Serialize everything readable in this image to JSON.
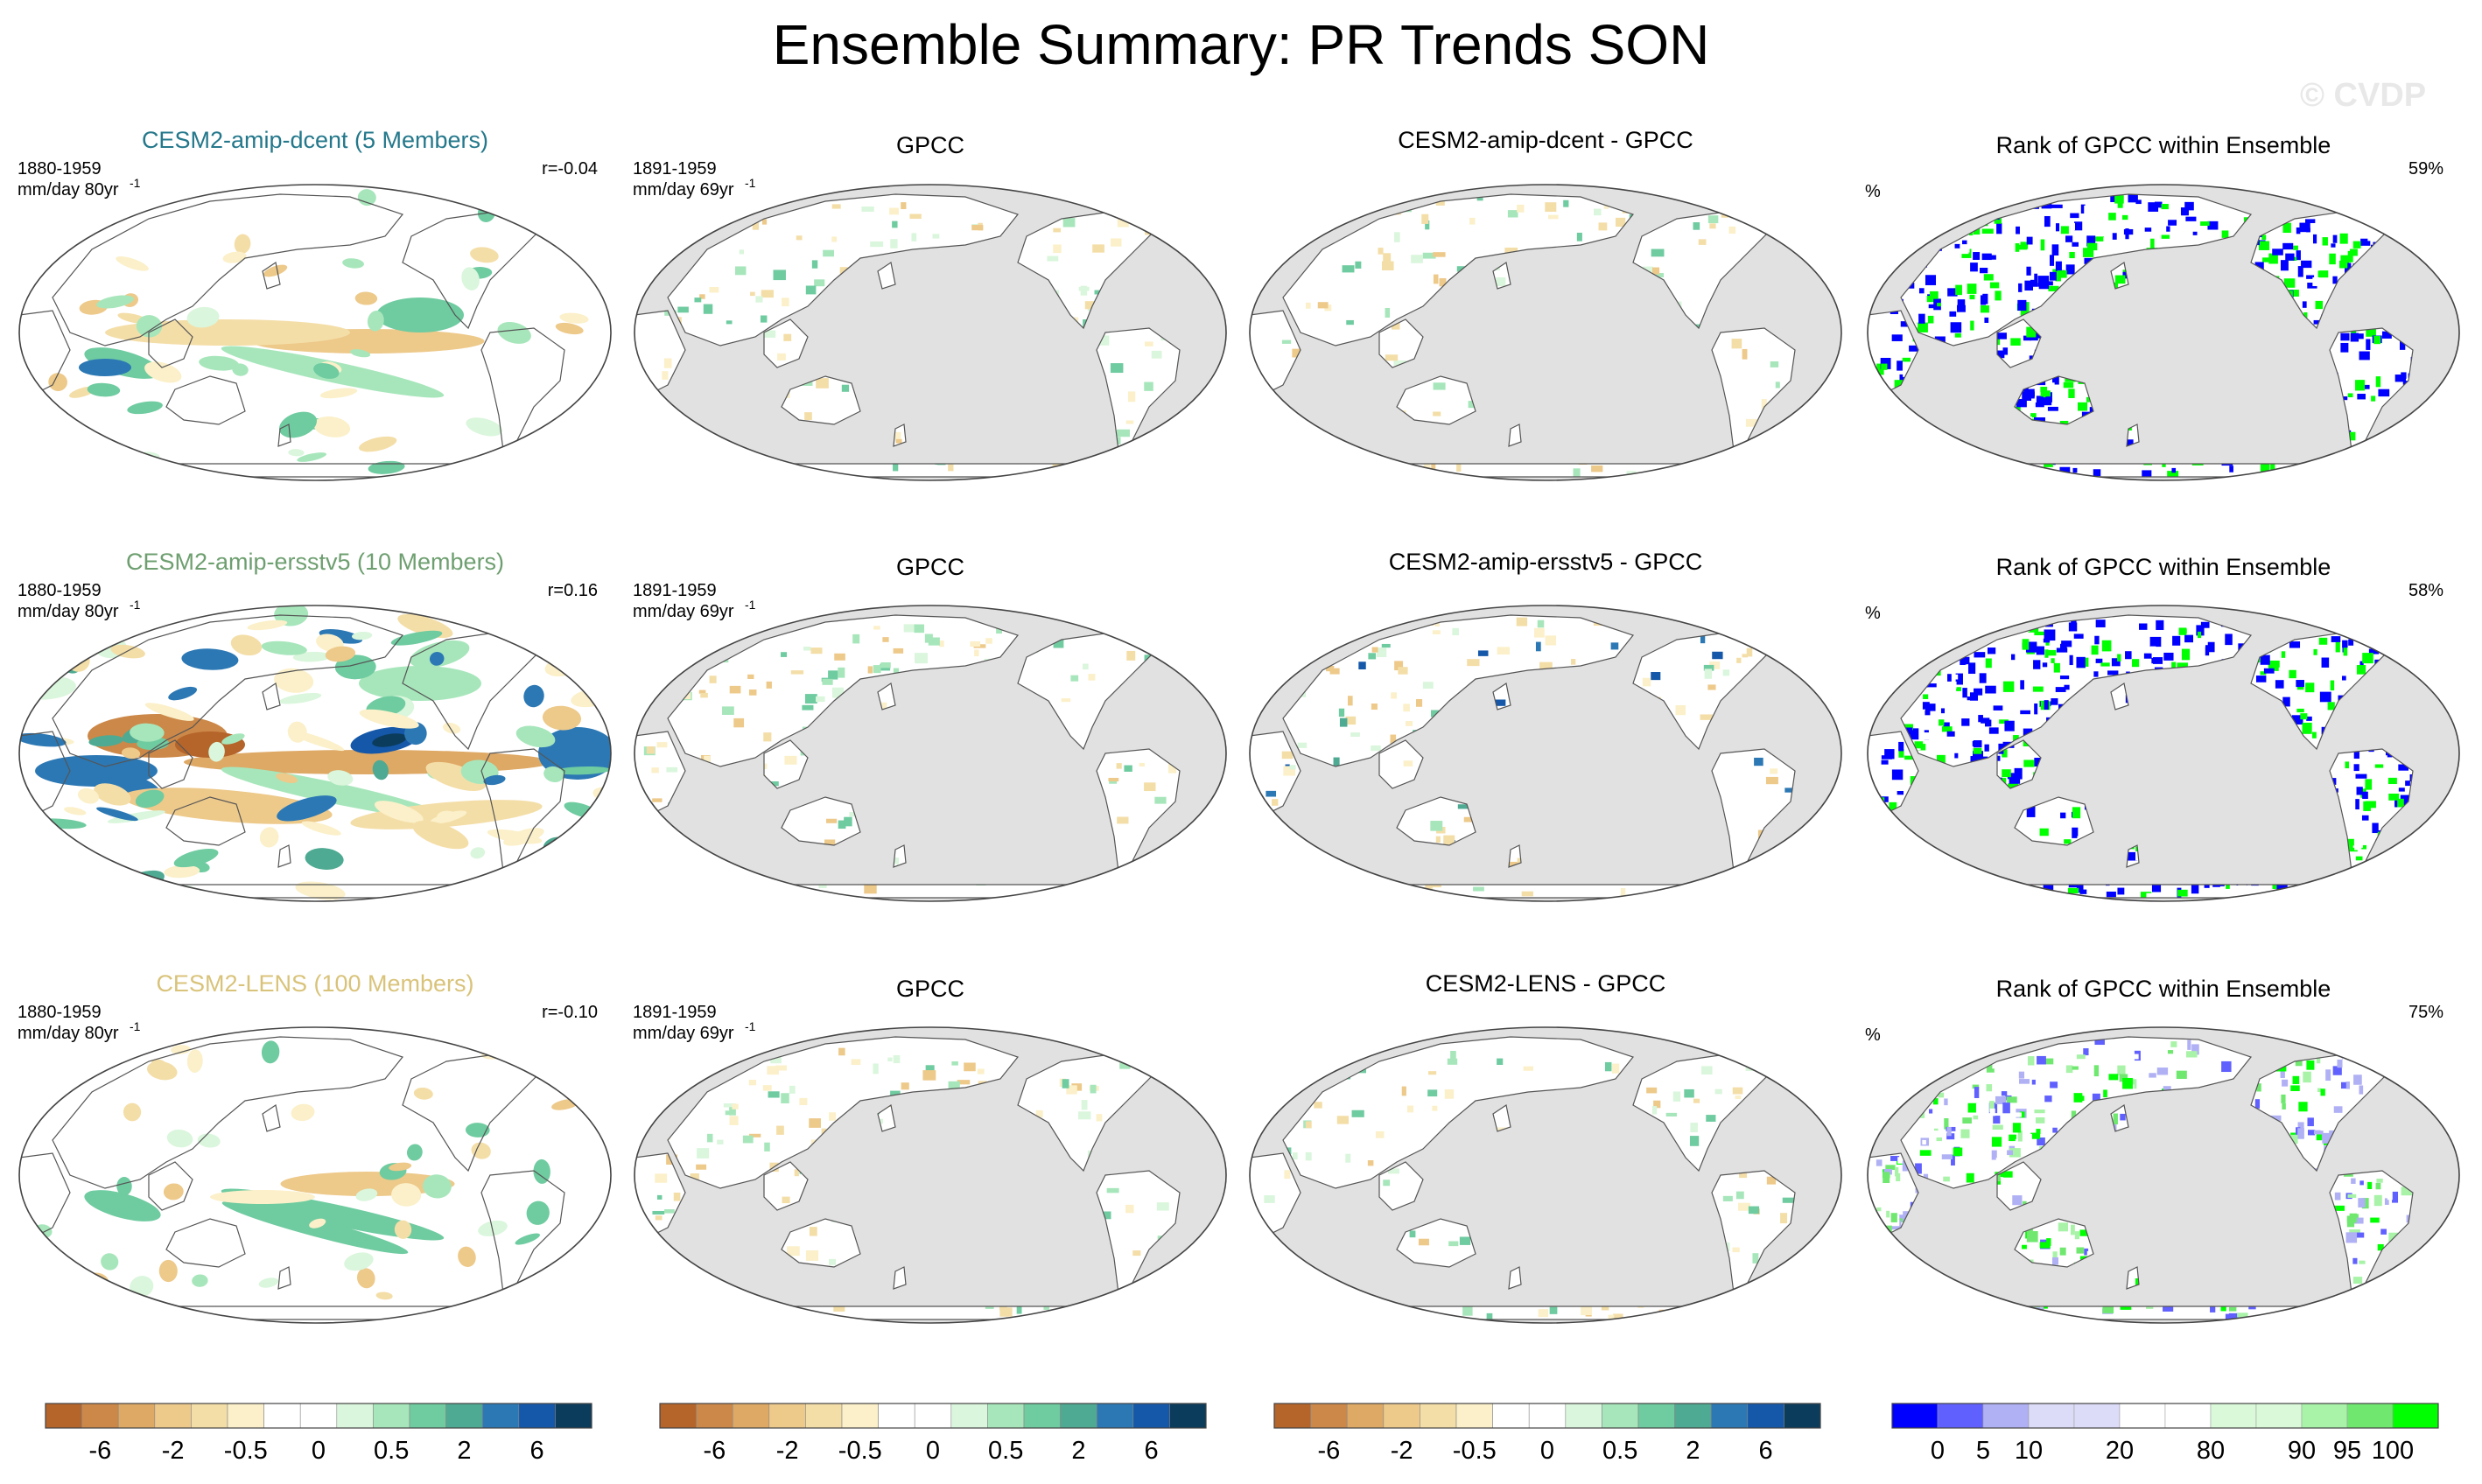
{
  "title": "Ensemble Summary: PR Trends SON",
  "watermark": "© CVDP",
  "colors": {
    "ocean_gray": "#e1e1e1",
    "coast": "#555555",
    "neg": [
      "#b5642a",
      "#cc8848",
      "#dea865",
      "#edc98a",
      "#f4dea8",
      "#fbf0c9"
    ],
    "pos": [
      "#daf6dc",
      "#a7e6bb",
      "#6fcba0",
      "#4eaa92",
      "#2c78b4",
      "#1557a8",
      "#0b3c5c"
    ],
    "rank": [
      "#0000ff",
      "#6060ff",
      "#b0b0f5",
      "#dcdcf8",
      "#ffffff",
      "#d9f9d9",
      "#a8f3a8",
      "#70e870",
      "#00ff00"
    ]
  },
  "rows": [
    {
      "model": {
        "title": "CESM2-amip-dcent (5 Members)",
        "title_color": "#24788b",
        "period": "1880-1959",
        "units": "mm/day 80yr",
        "units_sup": "-1",
        "r": "r=-0.04"
      },
      "obs": {
        "title": "GPCC",
        "period": "1891-1959",
        "units": "mm/day 69yr",
        "units_sup": "-1"
      },
      "diff": {
        "title": "CESM2-amip-dcent - GPCC"
      },
      "rank": {
        "title": "Rank of GPCC within Ensemble",
        "units": "%",
        "pct": "59%"
      }
    },
    {
      "model": {
        "title": "CESM2-amip-ersstv5 (10 Members)",
        "title_color": "#6e9f70",
        "period": "1880-1959",
        "units": "mm/day 80yr",
        "units_sup": "-1",
        "r": "r=0.16"
      },
      "obs": {
        "title": "GPCC",
        "period": "1891-1959",
        "units": "mm/day 69yr",
        "units_sup": "-1"
      },
      "diff": {
        "title": "CESM2-amip-ersstv5 - GPCC"
      },
      "rank": {
        "title": "Rank of GPCC within Ensemble",
        "units": "%",
        "pct": "58%"
      }
    },
    {
      "model": {
        "title": "CESM2-LENS (100 Members)",
        "title_color": "#d9c37a",
        "period": "1880-1959",
        "units": "mm/day 80yr",
        "units_sup": "-1",
        "r": "r=-0.10"
      },
      "obs": {
        "title": "GPCC",
        "period": "1891-1959",
        "units": "mm/day 69yr",
        "units_sup": "-1"
      },
      "diff": {
        "title": "CESM2-LENS - GPCC"
      },
      "rank": {
        "title": "Rank of GPCC within Ensemble",
        "units": "%",
        "pct": "75%"
      }
    }
  ],
  "colorbars": {
    "pr_labels": [
      "-6",
      "-2",
      "-0.5",
      "0",
      "0.5",
      "2",
      "6"
    ],
    "rank_labels": [
      "0",
      "5",
      "10",
      "20",
      "80",
      "90",
      "95",
      "100"
    ]
  }
}
